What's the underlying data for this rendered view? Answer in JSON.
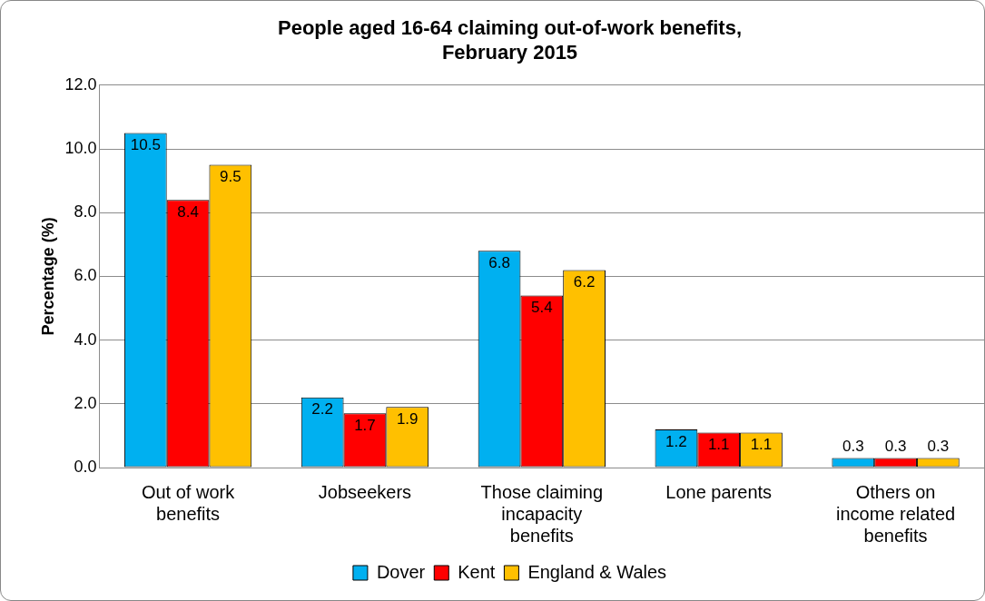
{
  "chart_data": {
    "type": "bar",
    "title": "People aged 16-64 claiming out-of-work benefits, February 2015",
    "ylabel": "Percentage (%)",
    "categories": [
      "Out of work benefits",
      "Jobseekers",
      "Those claiming incapacity benefits",
      "Lone parents",
      "Others on income related benefits"
    ],
    "series": [
      {
        "name": "Dover",
        "color": "#00b0f0",
        "values": [
          10.5,
          2.2,
          6.8,
          1.2,
          0.3
        ]
      },
      {
        "name": "Kent",
        "color": "#ff0000",
        "values": [
          8.4,
          1.7,
          5.4,
          1.1,
          0.3
        ]
      },
      {
        "name": "England & Wales",
        "color": "#ffc000",
        "values": [
          9.5,
          1.9,
          6.2,
          1.1,
          0.3
        ]
      }
    ],
    "ylim": [
      0,
      12
    ],
    "yticks": [
      {
        "value": 0,
        "label": "0.0"
      },
      {
        "value": 2,
        "label": "2.0"
      },
      {
        "value": 4,
        "label": "4.0"
      },
      {
        "value": 6,
        "label": "6.0"
      },
      {
        "value": 8,
        "label": "8.0"
      },
      {
        "value": 10,
        "label": "10.0"
      },
      {
        "value": 12,
        "label": "12.0"
      }
    ],
    "grid": "y",
    "legend": "bottom",
    "data_labels": true
  }
}
